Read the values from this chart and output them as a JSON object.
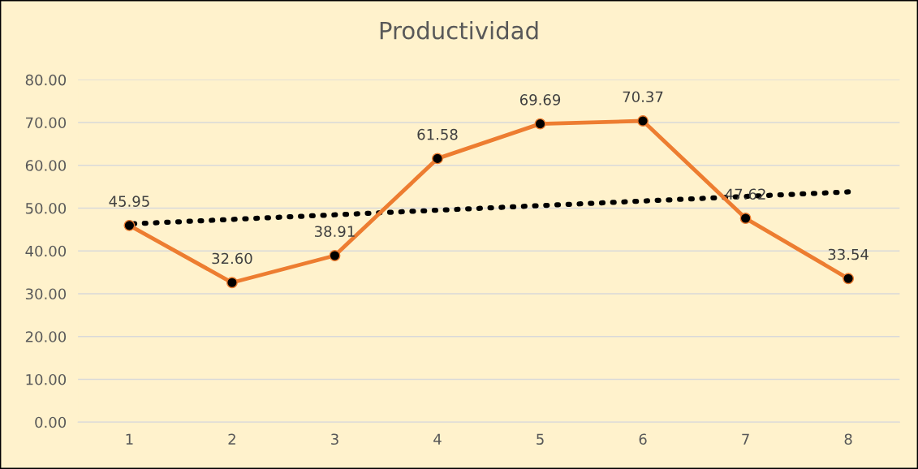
{
  "chart_data": {
    "type": "line",
    "title": "Productividad",
    "x": [
      1,
      2,
      3,
      4,
      5,
      6,
      7,
      8
    ],
    "xlim": [
      0.5,
      8.5
    ],
    "xticks": [
      1,
      2,
      3,
      4,
      5,
      6,
      7,
      8
    ],
    "ylim": [
      0,
      80
    ],
    "yticks": [
      {
        "value": 0,
        "label": "0.00"
      },
      {
        "value": 10,
        "label": "10.00"
      },
      {
        "value": 20,
        "label": "20.00"
      },
      {
        "value": 30,
        "label": "30.00"
      },
      {
        "value": 40,
        "label": "40.00"
      },
      {
        "value": 50,
        "label": "50.00"
      },
      {
        "value": 60,
        "label": "60.00"
      },
      {
        "value": 70,
        "label": "70.00"
      },
      {
        "value": 80,
        "label": "80.00"
      }
    ],
    "grid": "y",
    "legend": false,
    "marker": "circle",
    "line_style": "solid",
    "series": [
      {
        "color": "#ed7d31",
        "values": [
          45.95,
          32.6,
          38.91,
          61.58,
          69.69,
          70.37,
          47.62,
          33.54
        ],
        "value_labels": [
          "45.95",
          "32.60",
          "38.91",
          "61.58",
          "69.69",
          "70.37",
          "47.62",
          "33.54"
        ]
      },
      {
        "type": "line",
        "color": "#000000",
        "x": [
          1,
          8
        ],
        "values": [
          46.3,
          53.8
        ],
        "line_style": "dotted",
        "marker": "none"
      }
    ]
  }
}
